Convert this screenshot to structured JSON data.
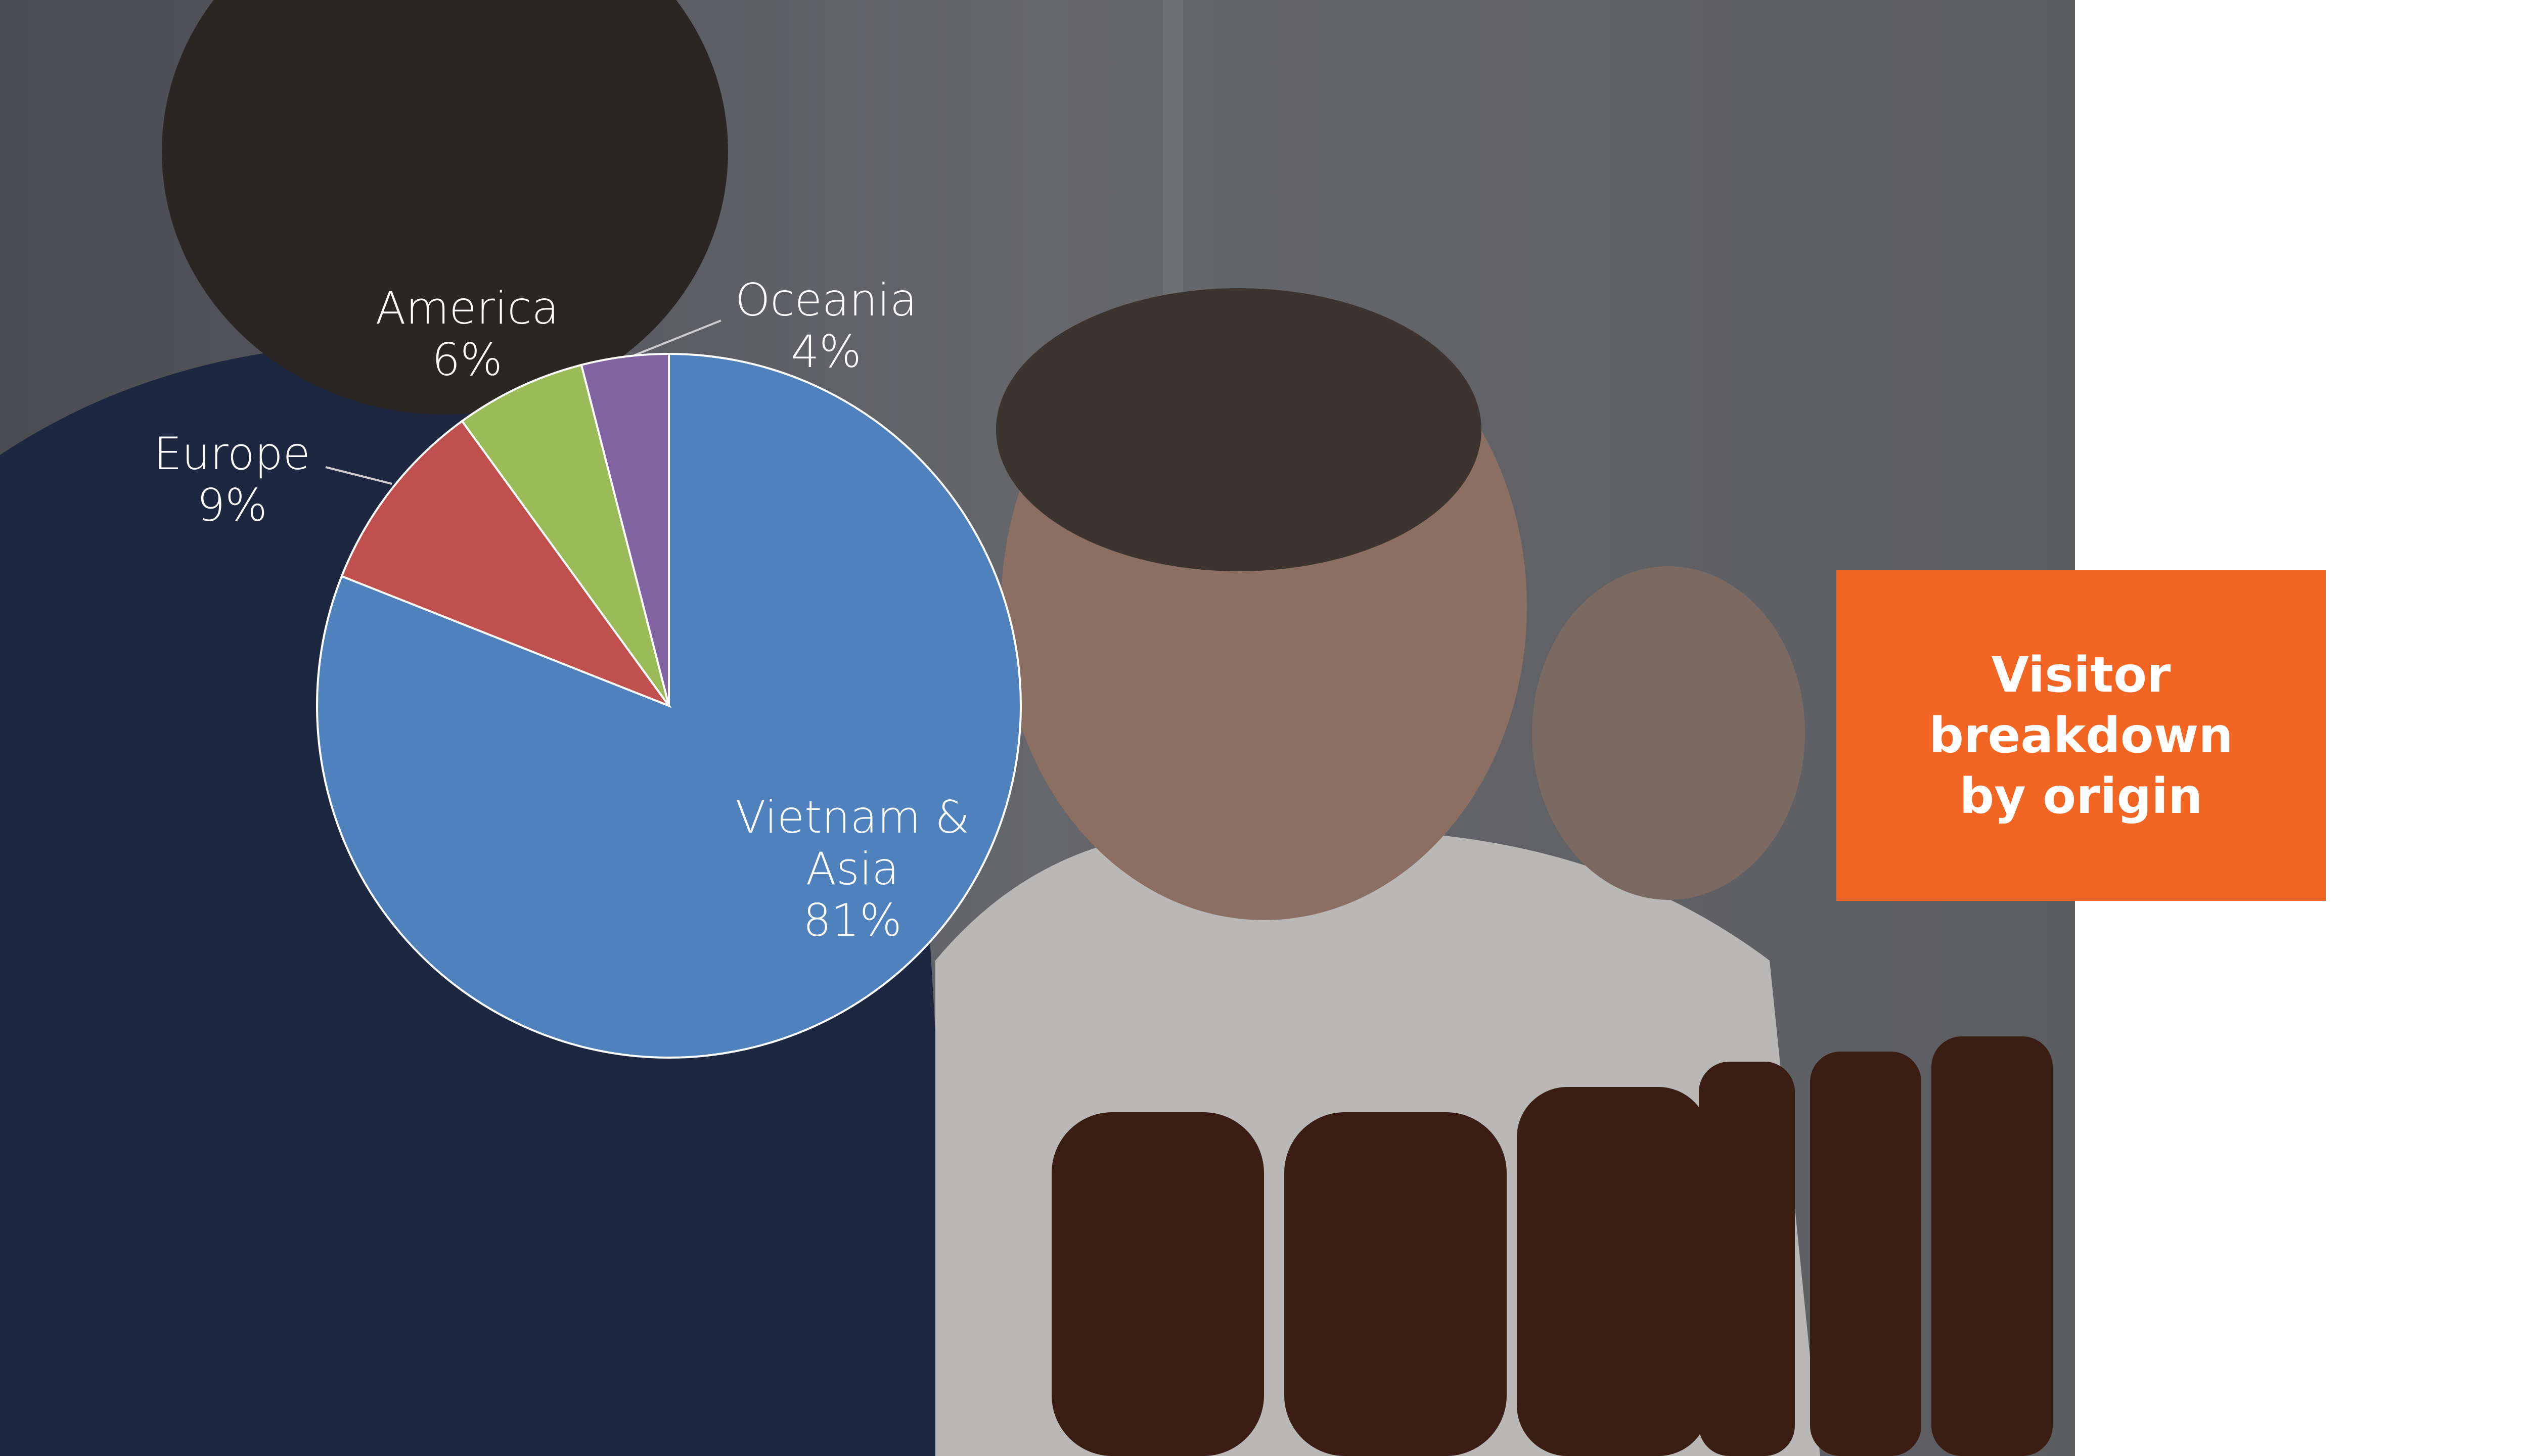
{
  "chart_data": {
    "type": "pie",
    "title": "Visitor breakdown by origin",
    "categories": [
      "Vietnam & Asia",
      "Europe",
      "America",
      "Oceania"
    ],
    "values": [
      81,
      9,
      6,
      4
    ],
    "value_labels": [
      "81%",
      "9%",
      "6%",
      "4%"
    ],
    "colors": [
      "#4f81bd",
      "#c0504d",
      "#9bbb59",
      "#8064a2"
    ]
  }
}
